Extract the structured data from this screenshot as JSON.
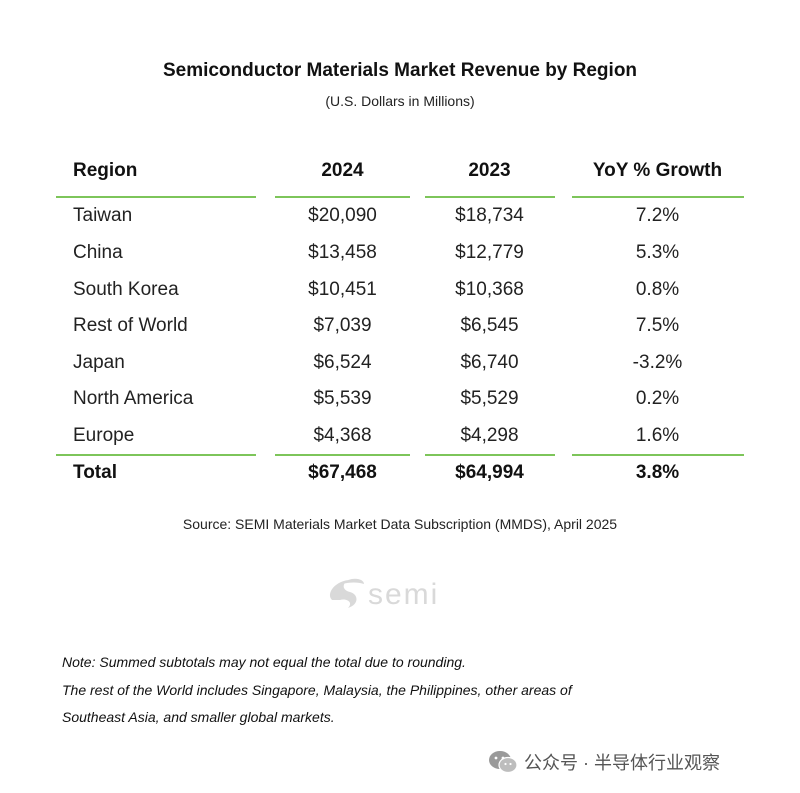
{
  "title": "Semiconductor Materials Market Revenue by Region",
  "subtitle": "(U.S. Dollars in Millions)",
  "headers": {
    "region": "Region",
    "y2024": "2024",
    "y2023": "2023",
    "yoy": "YoY % Growth"
  },
  "rows": [
    {
      "region": "Taiwan",
      "y2024": "$20,090",
      "y2023": "$18,734",
      "yoy": "7.2%"
    },
    {
      "region": "China",
      "y2024": "$13,458",
      "y2023": "$12,779",
      "yoy": "5.3%"
    },
    {
      "region": "South Korea",
      "y2024": "$10,451",
      "y2023": "$10,368",
      "yoy": "0.8%"
    },
    {
      "region": "Rest of World",
      "y2024": "$7,039",
      "y2023": "$6,545",
      "yoy": "7.5%"
    },
    {
      "region": "Japan",
      "y2024": "$6,524",
      "y2023": "$6,740",
      "yoy": "-3.2%"
    },
    {
      "region": "North America",
      "y2024": "$5,539",
      "y2023": "$5,529",
      "yoy": "0.2%"
    },
    {
      "region": "Europe",
      "y2024": "$4,368",
      "y2023": "$4,298",
      "yoy": "1.6%"
    }
  ],
  "total": {
    "region": "Total",
    "y2024": "$67,468",
    "y2023": "$64,994",
    "yoy": "3.8%"
  },
  "source": "Source: SEMI Materials Market Data Subscription (MMDS), April 2025",
  "logo_text": "semi",
  "notes": [
    "Note: Summed subtotals may not equal the total due to rounding.",
    "The rest of the World includes Singapore, Malaysia, the Philippines, other areas of",
    "Southeast Asia, and smaller global markets."
  ],
  "watermark": "公众号 · 半导体行业观察",
  "colors": {
    "accent": "#7dc55a",
    "logo": "#d9d9d9"
  },
  "chart_data": {
    "type": "table",
    "title": "Semiconductor Materials Market Revenue by Region",
    "subtitle": "(U.S. Dollars in Millions)",
    "columns": [
      "Region",
      "2024",
      "2023",
      "YoY % Growth"
    ],
    "categories": [
      "Taiwan",
      "China",
      "South Korea",
      "Rest of World",
      "Japan",
      "North America",
      "Europe"
    ],
    "series": [
      {
        "name": "2024",
        "values": [
          20090,
          13458,
          10451,
          7039,
          6524,
          5539,
          4368
        ]
      },
      {
        "name": "2023",
        "values": [
          18734,
          12779,
          10368,
          6545,
          6740,
          5529,
          4298
        ]
      },
      {
        "name": "YoY % Growth",
        "values": [
          7.2,
          5.3,
          0.8,
          7.5,
          -3.2,
          0.2,
          1.6
        ]
      }
    ],
    "total": {
      "2024": 67468,
      "2023": 64994,
      "YoY % Growth": 3.8
    }
  }
}
